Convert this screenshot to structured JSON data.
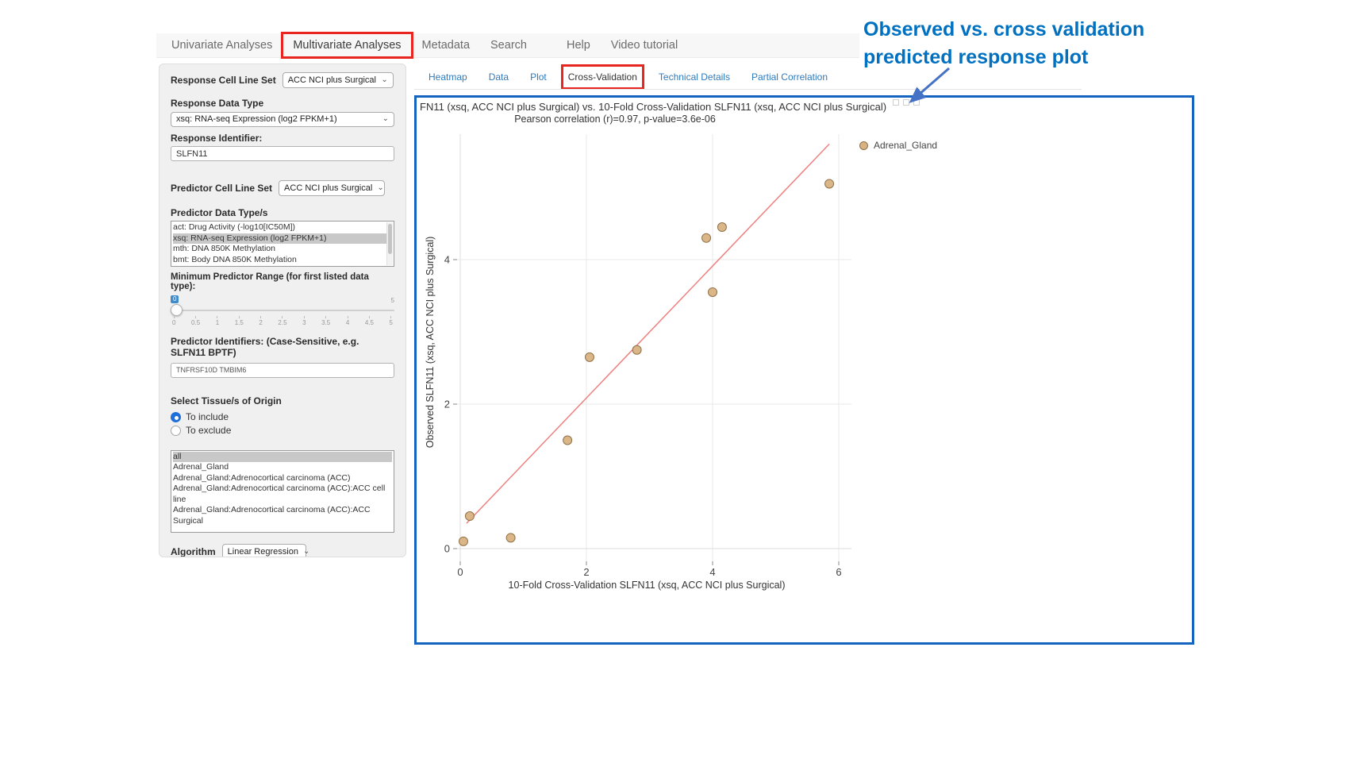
{
  "colors": {
    "annotation_blue": "#0070c0",
    "box_border_blue": "#1565c0",
    "highlight_red": "#e8251f",
    "link_blue": "#2e7bbd",
    "slider_badge_blue": "#428bca",
    "arrow_blue": "#4472c4"
  },
  "nav": {
    "items": [
      {
        "label": "Univariate Analyses",
        "active": false,
        "highlighted": false
      },
      {
        "label": "Multivariate Analyses",
        "active": true,
        "highlighted": true
      },
      {
        "label": "Metadata",
        "active": false,
        "highlighted": false
      },
      {
        "label": "Search",
        "active": false,
        "highlighted": false
      },
      {
        "label": "Help",
        "active": false,
        "highlighted": false
      },
      {
        "label": "Video tutorial",
        "active": false,
        "highlighted": false
      }
    ]
  },
  "sidebar": {
    "response_cell_line_set": {
      "label": "Response Cell Line Set",
      "value": "ACC NCI plus Surgical"
    },
    "response_data_type": {
      "label": "Response Data Type",
      "value": "xsq: RNA-seq Expression (log2 FPKM+1)"
    },
    "response_identifier": {
      "label": "Response Identifier:",
      "value": "SLFN11"
    },
    "predictor_cell_line_set": {
      "label": "Predictor Cell Line Set",
      "value": "ACC NCI plus Surgical"
    },
    "predictor_data_types": {
      "label": "Predictor Data Type/s",
      "options": [
        {
          "label": "act: Drug Activity (-log10[IC50M])",
          "selected": false
        },
        {
          "label": "xsq: RNA-seq Expression (log2 FPKM+1)",
          "selected": true
        },
        {
          "label": "mth: DNA 850K Methylation",
          "selected": false
        },
        {
          "label": "bmt: Body DNA 850K Methylation",
          "selected": false
        }
      ]
    },
    "min_predictor_range": {
      "label": "Minimum Predictor Range (for first listed data type):",
      "value": "0",
      "max_label": "5",
      "ticks": [
        "0",
        "0.5",
        "1",
        "1.5",
        "2",
        "2.5",
        "3",
        "3.5",
        "4",
        "4.5",
        "5"
      ]
    },
    "predictor_identifiers": {
      "label": "Predictor Identifiers: (Case-Sensitive, e.g. SLFN11 BPTF)",
      "value": "TNFRSF10D TMBIM6"
    },
    "tissue_origin": {
      "label": "Select Tissue/s of Origin",
      "radios": [
        {
          "label": "To include",
          "selected": true
        },
        {
          "label": "To exclude",
          "selected": false
        }
      ],
      "list": [
        {
          "label": "all",
          "selected": true
        },
        {
          "label": "Adrenal_Gland",
          "selected": false
        },
        {
          "label": "Adrenal_Gland:Adrenocortical carcinoma (ACC)",
          "selected": false
        },
        {
          "label": "Adrenal_Gland:Adrenocortical carcinoma (ACC):ACC cell line",
          "selected": false
        },
        {
          "label": "Adrenal_Gland:Adrenocortical carcinoma (ACC):ACC Surgical",
          "selected": false
        }
      ]
    },
    "algorithm": {
      "label": "Algorithm",
      "value": "Linear Regression"
    }
  },
  "tabs": [
    {
      "label": "Heatmap",
      "active": false,
      "highlighted": false
    },
    {
      "label": "Data",
      "active": false,
      "highlighted": false
    },
    {
      "label": "Plot",
      "active": false,
      "highlighted": false
    },
    {
      "label": "Cross-Validation",
      "active": true,
      "highlighted": true
    },
    {
      "label": "Technical Details",
      "active": false,
      "highlighted": false
    },
    {
      "label": "Partial Correlation",
      "active": false,
      "highlighted": false
    }
  ],
  "annotation": {
    "line1": "Observed vs. cross validation",
    "line2": "predicted response plot"
  },
  "chart_data": {
    "type": "scatter",
    "title": "FN11 (xsq, ACC NCI plus Surgical) vs. 10-Fold Cross-Validation SLFN11 (xsq, ACC NCI plus Surgical)",
    "subtitle": "Pearson correlation (r)=0.97, p-value=3.6e-06",
    "xlabel": "10-Fold Cross-Validation SLFN11 (xsq, ACC NCI plus Surgical)",
    "ylabel": "Observed SLFN11 (xsq, ACC NCI plus Surgical)",
    "xlim": [
      -0.3,
      6.3
    ],
    "ylim": [
      -0.3,
      5.9
    ],
    "xticks": [
      0,
      2,
      4,
      6
    ],
    "yticks": [
      0,
      2,
      4
    ],
    "grid": true,
    "legend_position": "top-right-outside",
    "legend": [
      {
        "label": "Adrenal_Gland",
        "color": "#d9b282"
      }
    ],
    "series": [
      {
        "name": "Adrenal_Gland",
        "points": [
          [
            0.05,
            0.1
          ],
          [
            0.15,
            0.45
          ],
          [
            0.8,
            0.15
          ],
          [
            1.7,
            1.5
          ],
          [
            2.05,
            2.65
          ],
          [
            2.8,
            2.75
          ],
          [
            3.9,
            4.3
          ],
          [
            4.0,
            3.55
          ],
          [
            4.15,
            4.45
          ],
          [
            5.85,
            5.05
          ]
        ]
      }
    ],
    "regression_line": {
      "x1": 0.1,
      "y1": 0.35,
      "x2": 5.85,
      "y2": 5.6,
      "color": "#f08080"
    },
    "point_color": "#d9b282",
    "point_stroke": "#8f7146"
  }
}
